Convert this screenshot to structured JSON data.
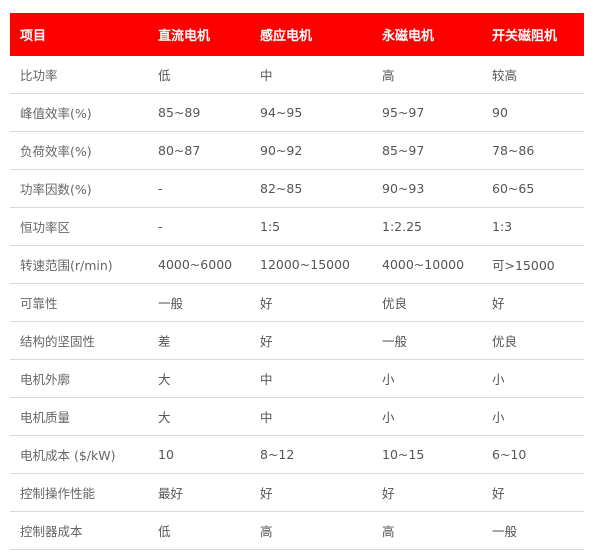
{
  "colors": {
    "header_bg": "#fe0000",
    "header_text": "#ffffff",
    "cell_text": "#555555",
    "row_border": "#d8d8d8"
  },
  "headers": [
    "项目",
    "直流电机",
    "感应电机",
    "永磁电机",
    "开关磁阻机"
  ],
  "rows": [
    [
      "比功率",
      "低",
      "中",
      "高",
      "较高"
    ],
    [
      "峰值效率(%)",
      "85~89",
      "94~95",
      "95~97",
      "90"
    ],
    [
      "负荷效率(%)",
      "80~87",
      "90~92",
      "85~97",
      "78~86"
    ],
    [
      "功率因数(%)",
      "-",
      "82~85",
      "90~93",
      "60~65"
    ],
    [
      "恒功率区",
      "-",
      "1:5",
      "1:2.25",
      "1:3"
    ],
    [
      "转速范围(r/min)",
      "4000~6000",
      "12000~15000",
      "4000~10000",
      "可>15000"
    ],
    [
      "可靠性",
      "一般",
      "好",
      "优良",
      "好"
    ],
    [
      "结构的坚固性",
      "差",
      "好",
      "一般",
      "优良"
    ],
    [
      "电机外廓",
      "大",
      "中",
      "小",
      "小"
    ],
    [
      "电机质量",
      "大",
      "中",
      "小",
      "小"
    ],
    [
      "电机成本 ($/kW)",
      "10",
      "8~12",
      "10~15",
      "6~10"
    ],
    [
      "控制操作性能",
      "最好",
      "好",
      "好",
      "好"
    ],
    [
      "控制器成本",
      "低",
      "高",
      "高",
      "一般"
    ]
  ]
}
